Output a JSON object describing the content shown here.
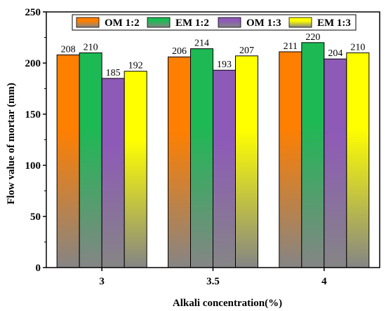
{
  "chart_data": {
    "type": "bar",
    "xlabel": "Alkali concentration(%)",
    "ylabel": "Flow value of mortar (mm)",
    "ylim": [
      0,
      250
    ],
    "yticks": [
      "0",
      "50",
      "100",
      "150",
      "200",
      "250"
    ],
    "categories": [
      "3",
      "3.5",
      "4"
    ],
    "series": [
      {
        "name": "OM 1:2",
        "values": [
          208,
          206,
          211
        ],
        "labels": [
          "208",
          "206",
          "211"
        ],
        "color": "#ff7f00"
      },
      {
        "name": "EM 1:2",
        "values": [
          210,
          214,
          220
        ],
        "labels": [
          "210",
          "214",
          "220"
        ],
        "color": "#1db954"
      },
      {
        "name": "OM 1:3",
        "values": [
          185,
          193,
          204
        ],
        "labels": [
          "185",
          "193",
          "204"
        ],
        "color": "#8e5ab8"
      },
      {
        "name": "EM 1:3",
        "values": [
          192,
          207,
          210
        ],
        "labels": [
          "192",
          "207",
          "210"
        ],
        "color": "#ffff00"
      }
    ],
    "grid": false,
    "legend": "top",
    "bottom_color": "#858585"
  }
}
